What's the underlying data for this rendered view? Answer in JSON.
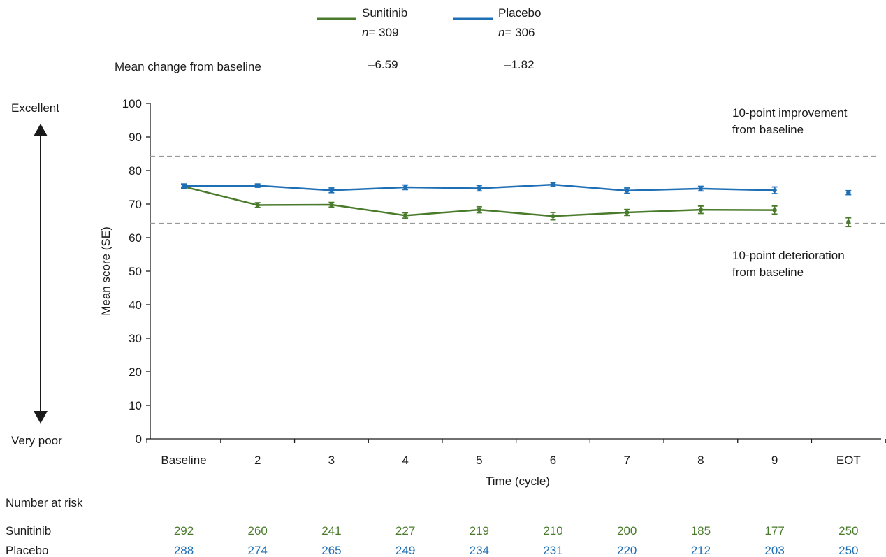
{
  "legend": {
    "items": [
      {
        "name": "Sunitinib",
        "n_label": "n",
        "n_value": "= 309",
        "color": "#4a7b2c"
      },
      {
        "name": "Placebo",
        "n_label": "n",
        "n_value": "= 306",
        "color": "#1f6fb4"
      }
    ],
    "mean_change_label": "Mean change from baseline",
    "mean_change_values": [
      "–6.59",
      "–1.82"
    ]
  },
  "arrow": {
    "top_label": "Excellent",
    "bottom_label": "Very poor"
  },
  "reference_lines": [
    {
      "value": 84.2,
      "label_line1": "10-point improvement",
      "label_line2": "from baseline"
    },
    {
      "value": 64.2,
      "label_line1": "10-point deterioration",
      "label_line2": "from baseline"
    }
  ],
  "chart_data": {
    "type": "line",
    "xlabel": "Time (cycle)",
    "ylabel": "Mean score (SE)",
    "ylim": [
      0,
      100
    ],
    "yticks": [
      0,
      10,
      20,
      30,
      40,
      50,
      60,
      70,
      80,
      90,
      100
    ],
    "categories": [
      "Baseline",
      "2",
      "3",
      "4",
      "5",
      "6",
      "7",
      "8",
      "9",
      "EOT"
    ],
    "grid": false,
    "legend_position": "top-center",
    "series": [
      {
        "name": "Sunitinib",
        "color": "#4a7b2c",
        "values": [
          75.2,
          69.7,
          69.8,
          66.6,
          68.3,
          66.4,
          67.5,
          68.3,
          68.2,
          64.6
        ],
        "se": [
          0.6,
          0.7,
          0.7,
          0.8,
          0.9,
          1.1,
          0.9,
          1.1,
          1.2,
          1.3
        ],
        "connected_points": 9
      },
      {
        "name": "Placebo",
        "color": "#1f6fb4",
        "values": [
          75.4,
          75.5,
          74.1,
          75.0,
          74.7,
          75.8,
          74.0,
          74.6,
          74.1,
          73.4
        ],
        "se": [
          0.6,
          0.5,
          0.7,
          0.7,
          0.8,
          0.6,
          0.8,
          0.7,
          1.0,
          0.6
        ],
        "connected_points": 9
      }
    ]
  },
  "risk_table": {
    "title": "Number at risk",
    "rows": [
      {
        "label": "Sunitinib",
        "color": "#4a7b2c",
        "values": [
          "292",
          "260",
          "241",
          "227",
          "219",
          "210",
          "200",
          "185",
          "177",
          "250"
        ]
      },
      {
        "label": "Placebo",
        "color": "#1f6fb4",
        "values": [
          "288",
          "274",
          "265",
          "249",
          "234",
          "231",
          "220",
          "212",
          "203",
          "250"
        ]
      }
    ]
  }
}
